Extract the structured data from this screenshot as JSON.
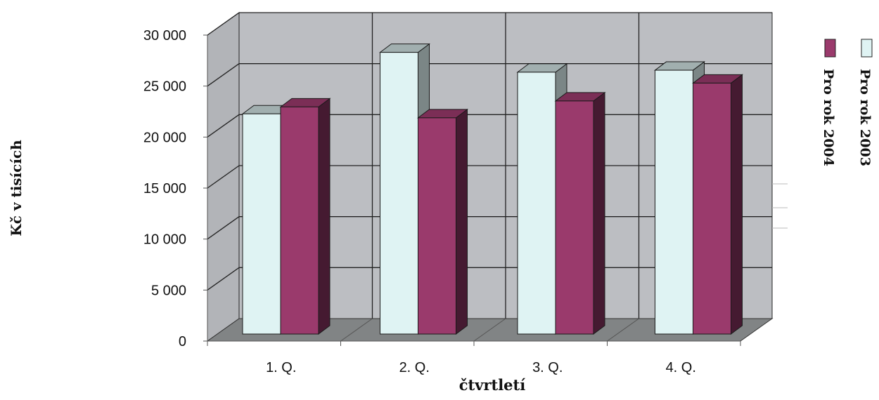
{
  "chart_data": {
    "type": "bar",
    "categories": [
      "1. Q.",
      "2. Q.",
      "3. Q.",
      "4. Q."
    ],
    "series": [
      {
        "name": "Pro rok 2003",
        "values": [
          22200,
          28400,
          26400,
          26600
        ],
        "color": "#dff3f3"
      },
      {
        "name": "Pro rok 2004",
        "values": [
          22900,
          21800,
          23500,
          25300
        ],
        "color": "#9a3a6c"
      }
    ],
    "yticks": [
      "0",
      "5 000",
      "10 000",
      "15 000",
      "20 000",
      "25 000",
      "30 000"
    ],
    "ylim": [
      0,
      30000
    ],
    "xlabel": "čtvrtletí",
    "ylabel": "Kč v tisících",
    "grid": true,
    "legend_position": "right",
    "colors": {
      "wall": "#b9bbbf",
      "floor": "#808384",
      "grid": "#1f1f1f"
    }
  }
}
